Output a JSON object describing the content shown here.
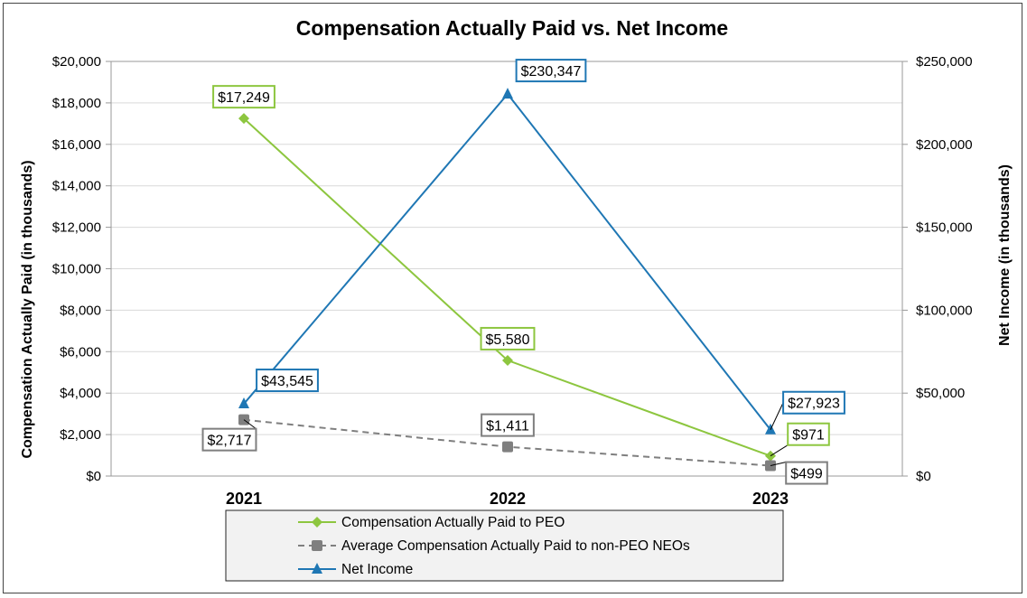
{
  "chart_data": {
    "type": "line",
    "title": "Compensation Actually Paid vs. Net Income",
    "categories": [
      "2021",
      "2022",
      "2023"
    ],
    "ylabel_left": "Compensation Actually Paid (in thousands)",
    "ylabel_right": "Net Income (in thousands)",
    "ylim_left": [
      0,
      20000
    ],
    "ylim_right": [
      0,
      250000
    ],
    "yticks_left": [
      "$0",
      "$2,000",
      "$4,000",
      "$6,000",
      "$8,000",
      "$10,000",
      "$12,000",
      "$14,000",
      "$16,000",
      "$18,000",
      "$20,000"
    ],
    "yticks_right": [
      "$0",
      "$50,000",
      "$100,000",
      "$150,000",
      "$200,000",
      "$250,000"
    ],
    "grid": true,
    "legend_position": "bottom",
    "series": [
      {
        "name": "Compensation Actually Paid to PEO",
        "axis": "left",
        "values": [
          17249,
          5580,
          971
        ],
        "labels": [
          "$17,249",
          "$5,580",
          "$971"
        ],
        "color": "#8DC63F",
        "marker": "diamond",
        "dashed": false
      },
      {
        "name": "Average Compensation Actually Paid to non-PEO NEOs",
        "axis": "left",
        "values": [
          2717,
          1411,
          499
        ],
        "labels": [
          "$2,717",
          "$1,411",
          "$499"
        ],
        "color": "#7F7F7F",
        "marker": "square",
        "dashed": true
      },
      {
        "name": "Net Income",
        "axis": "right",
        "values": [
          43545,
          230347,
          27923
        ],
        "labels": [
          "$43,545",
          "$230,347",
          "$27,923"
        ],
        "color": "#1F77B4",
        "marker": "triangle",
        "dashed": false
      }
    ]
  }
}
